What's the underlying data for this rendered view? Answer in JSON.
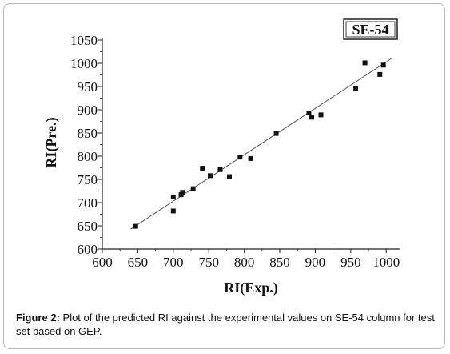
{
  "badge": "SE-54",
  "caption": {
    "label": "Figure 2:",
    "text": " Plot of the predicted RI against the experimental values on SE-54 column for test set based on GEP."
  },
  "chart_data": {
    "type": "scatter",
    "title": "",
    "xlabel": "RI(Exp.)",
    "ylabel": "RI(Pre.)",
    "xlim": [
      600,
      1020
    ],
    "ylim": [
      600,
      1050
    ],
    "xticks": [
      600,
      650,
      700,
      750,
      800,
      850,
      900,
      950,
      1000
    ],
    "yticks": [
      600,
      650,
      700,
      750,
      800,
      850,
      900,
      950,
      1000,
      1050
    ],
    "grid": false,
    "points": [
      {
        "x": 647,
        "y": 649
      },
      {
        "x": 700,
        "y": 712
      },
      {
        "x": 700,
        "y": 682
      },
      {
        "x": 711,
        "y": 717
      },
      {
        "x": 713,
        "y": 722
      },
      {
        "x": 728,
        "y": 730
      },
      {
        "x": 741,
        "y": 774
      },
      {
        "x": 752,
        "y": 758
      },
      {
        "x": 766,
        "y": 771
      },
      {
        "x": 779,
        "y": 756
      },
      {
        "x": 794,
        "y": 798
      },
      {
        "x": 809,
        "y": 795
      },
      {
        "x": 845,
        "y": 849
      },
      {
        "x": 891,
        "y": 893
      },
      {
        "x": 895,
        "y": 884
      },
      {
        "x": 908,
        "y": 889
      },
      {
        "x": 957,
        "y": 946
      },
      {
        "x": 970,
        "y": 1001
      },
      {
        "x": 991,
        "y": 976
      },
      {
        "x": 996,
        "y": 996
      }
    ],
    "fit_line": {
      "x": [
        640,
        1008
      ],
      "y": [
        643,
        1011
      ]
    }
  }
}
